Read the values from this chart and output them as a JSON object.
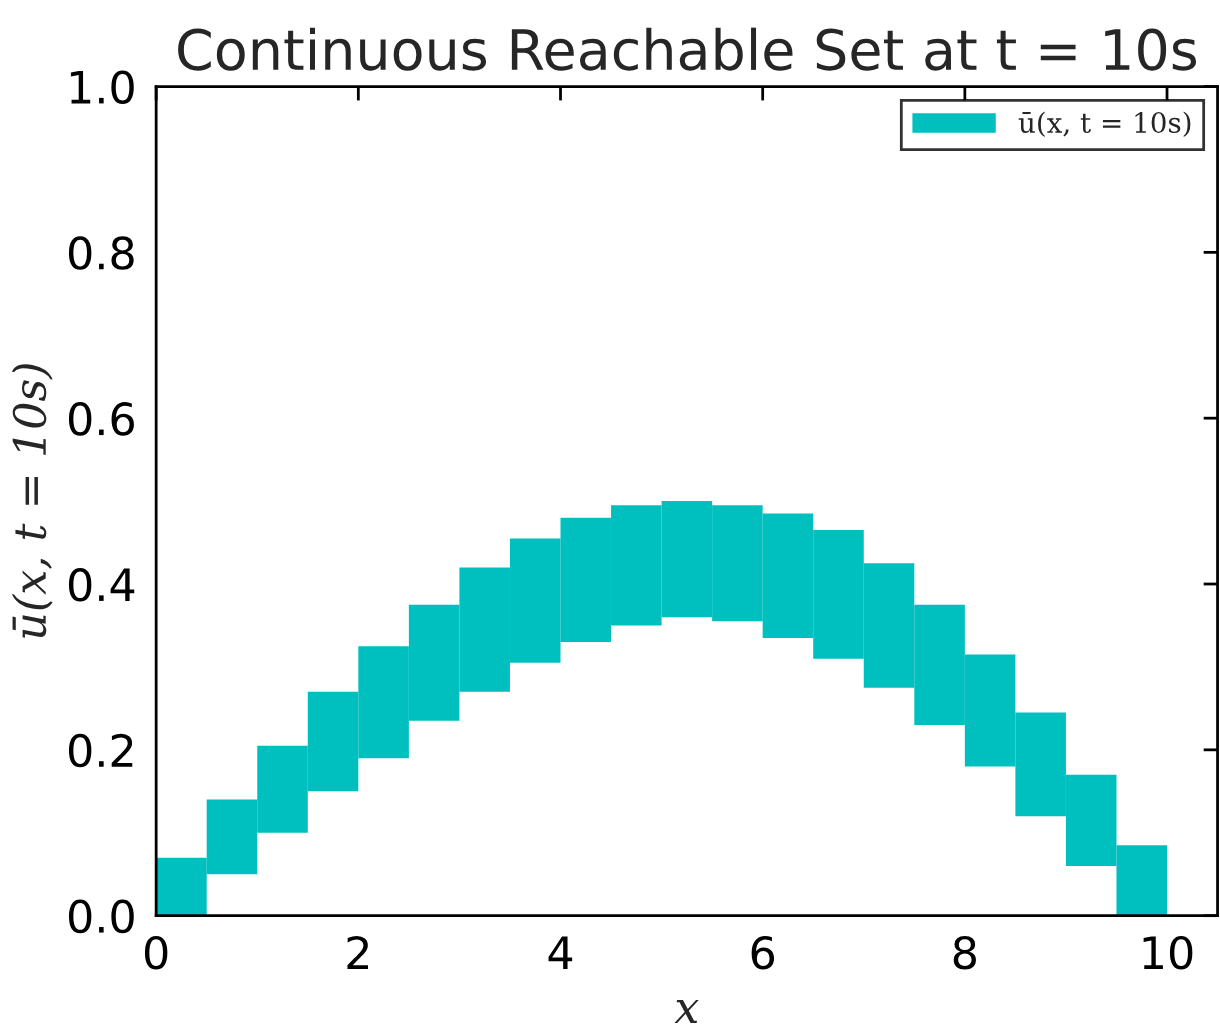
{
  "chart_data": {
    "type": "bar",
    "title": "Continuous Reachable Set at t = 10s",
    "xlabel": "x",
    "ylabel": "ū(x, t = 10s)",
    "x": [
      0.25,
      0.75,
      1.25,
      1.75,
      2.25,
      2.75,
      3.25,
      3.75,
      4.25,
      4.75,
      5.25,
      5.75,
      6.25,
      6.75,
      7.25,
      7.75,
      8.25,
      8.75,
      9.25,
      9.75
    ],
    "series": [
      {
        "name": "ū(x, t = 10s)",
        "color": "#00bfbf",
        "base": [
          0,
          0.05,
          0.1,
          0.15,
          0.19,
          0.235,
          0.27,
          0.305,
          0.33,
          0.35,
          0.36,
          0.355,
          0.335,
          0.31,
          0.275,
          0.23,
          0.18,
          0.12,
          0.06,
          0
        ],
        "values": [
          0.07,
          0.09,
          0.105,
          0.12,
          0.135,
          0.14,
          0.15,
          0.15,
          0.15,
          0.145,
          0.14,
          0.14,
          0.15,
          0.155,
          0.15,
          0.145,
          0.135,
          0.125,
          0.11,
          0.085
        ]
      }
    ],
    "xlim": [
      0,
      10.5
    ],
    "xticks": [
      0,
      2,
      4,
      6,
      8,
      10
    ],
    "ylim": [
      0,
      1.0
    ],
    "yticks": [
      {
        "value": 0,
        "label": "0.0"
      },
      {
        "value": 0.2,
        "label": "0.2"
      },
      {
        "value": 0.4,
        "label": "0.4"
      },
      {
        "value": 0.6,
        "label": "0.6"
      },
      {
        "value": 0.8,
        "label": "0.8"
      },
      {
        "value": 1.0,
        "label": "1.0"
      }
    ],
    "legend": "top right",
    "grid": false
  }
}
